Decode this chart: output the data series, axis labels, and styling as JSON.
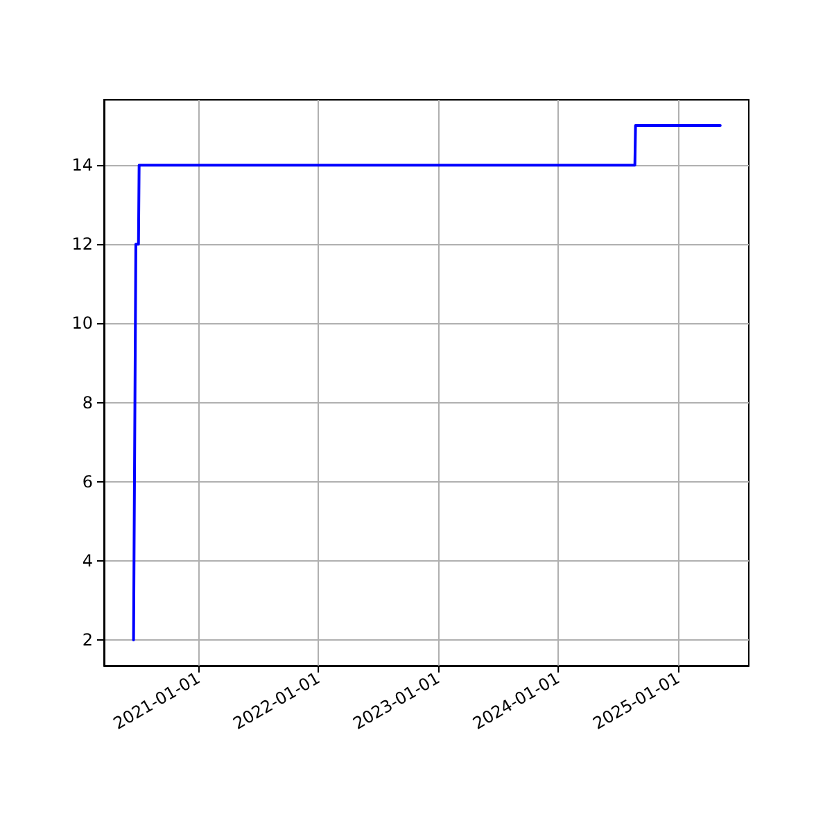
{
  "chart_data": {
    "type": "line",
    "color": "#0000ff",
    "x": [
      "2020-06-17",
      "2020-06-24",
      "2020-07-02",
      "2020-07-04",
      "2024-08-22",
      "2024-08-24",
      "2025-05-09"
    ],
    "values": [
      2,
      12,
      12,
      14,
      14,
      15,
      15
    ],
    "xlim": [
      "2020-03-19",
      "2025-08-04"
    ],
    "xticks": [
      "2021-01-01",
      "2022-01-01",
      "2023-01-01",
      "2024-01-01",
      "2025-01-01"
    ],
    "ylim": [
      1.35,
      15.65
    ],
    "yticks": [
      2,
      4,
      6,
      8,
      10,
      12,
      14
    ],
    "grid": true,
    "marker": "none",
    "line_style": "solid"
  }
}
